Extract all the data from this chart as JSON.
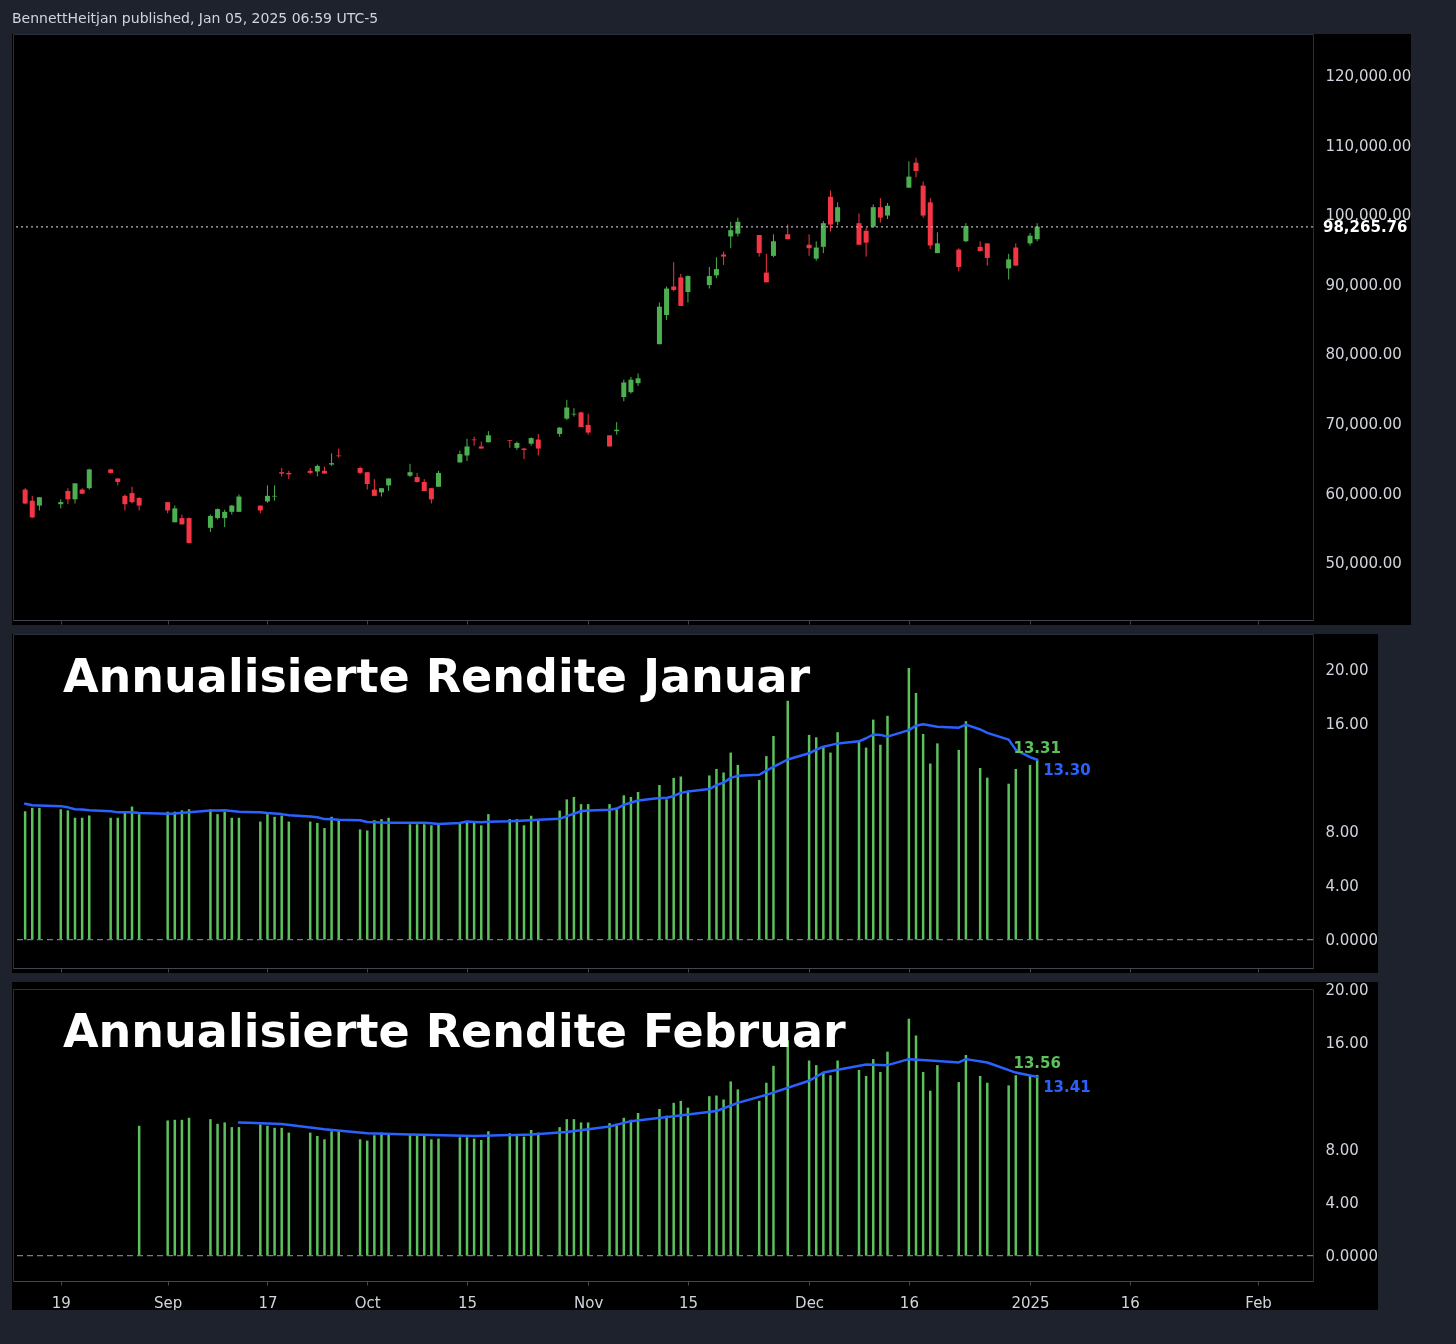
{
  "chart_data": [
    {
      "type": "candlestick",
      "annotations": [
        "BennettHeitjan published, Jan 05, 2025 06:59 UTC-5"
      ],
      "tick_labels": "y",
      "xlim": [
        "2024-08-13",
        "2025-02-10"
      ],
      "xticks": [
        {
          "value": "2024-08-19",
          "label": null
        },
        {
          "value": "2024-09-03",
          "label": null
        },
        {
          "value": "2024-09-17",
          "label": null
        },
        {
          "value": "2024-10-01",
          "label": null
        },
        {
          "value": "2024-10-15",
          "label": null
        },
        {
          "value": "2024-11-01",
          "label": null
        },
        {
          "value": "2024-11-15",
          "label": null
        },
        {
          "value": "2024-12-02",
          "label": null
        },
        {
          "value": "2024-12-16",
          "label": null
        },
        {
          "value": "2025-01-02",
          "label": null
        },
        {
          "value": "2025-01-16",
          "label": null
        },
        {
          "value": "2025-02-03",
          "label": null
        }
      ],
      "ylim": [
        41750,
        126000
      ],
      "yticks": [
        {
          "value": 50000,
          "label": "50,000.00"
        },
        {
          "value": 60000,
          "label": "60,000.00"
        },
        {
          "value": 70000,
          "label": "70,000.00"
        },
        {
          "value": 80000,
          "label": "80,000.00"
        },
        {
          "value": 90000,
          "label": "90,000.00"
        },
        {
          "value": 100000,
          "label": "100,000.00"
        },
        {
          "value": 110000,
          "label": "110,000.00"
        },
        {
          "value": 120000,
          "label": "120,000.00"
        }
      ],
      "ref_lines": [
        {
          "axis": "y",
          "value": 98265.76,
          "label": "98,265.76",
          "line_style": "dotted",
          "color": "#b2b5be"
        }
      ],
      "x": [
        "2024-08-14",
        "2024-08-15",
        "2024-08-16",
        "2024-08-19",
        "2024-08-20",
        "2024-08-21",
        "2024-08-22",
        "2024-08-23",
        "2024-08-26",
        "2024-08-27",
        "2024-08-28",
        "2024-08-29",
        "2024-08-30",
        "2024-09-03",
        "2024-09-04",
        "2024-09-05",
        "2024-09-06",
        "2024-09-09",
        "2024-09-10",
        "2024-09-11",
        "2024-09-12",
        "2024-09-13",
        "2024-09-16",
        "2024-09-17",
        "2024-09-18",
        "2024-09-19",
        "2024-09-20",
        "2024-09-23",
        "2024-09-24",
        "2024-09-25",
        "2024-09-26",
        "2024-09-27",
        "2024-09-30",
        "2024-10-01",
        "2024-10-02",
        "2024-10-03",
        "2024-10-04",
        "2024-10-07",
        "2024-10-08",
        "2024-10-09",
        "2024-10-10",
        "2024-10-11",
        "2024-10-14",
        "2024-10-15",
        "2024-10-16",
        "2024-10-17",
        "2024-10-18",
        "2024-10-21",
        "2024-10-22",
        "2024-10-23",
        "2024-10-24",
        "2024-10-25",
        "2024-10-28",
        "2024-10-29",
        "2024-10-30",
        "2024-10-31",
        "2024-11-01",
        "2024-11-04",
        "2024-11-05",
        "2024-11-06",
        "2024-11-07",
        "2024-11-08",
        "2024-11-11",
        "2024-11-12",
        "2024-11-13",
        "2024-11-14",
        "2024-11-15",
        "2024-11-18",
        "2024-11-19",
        "2024-11-20",
        "2024-11-21",
        "2024-11-22",
        "2024-11-25",
        "2024-11-26",
        "2024-11-27",
        "2024-11-29",
        "2024-12-02",
        "2024-12-03",
        "2024-12-04",
        "2024-12-05",
        "2024-12-06",
        "2024-12-09",
        "2024-12-10",
        "2024-12-11",
        "2024-12-12",
        "2024-12-13",
        "2024-12-16",
        "2024-12-17",
        "2024-12-18",
        "2024-12-19",
        "2024-12-20",
        "2024-12-23",
        "2024-12-24",
        "2024-12-26",
        "2024-12-27",
        "2024-12-30",
        "2024-12-31",
        "2025-01-02",
        "2025-01-03"
      ],
      "ohlc": [
        [
          60500,
          60700,
          58400,
          58500
        ],
        [
          58900,
          59600,
          56400,
          56500
        ],
        [
          58200,
          59400,
          57500,
          59400
        ],
        [
          58400,
          59100,
          57800,
          58700
        ],
        [
          60300,
          60700,
          58400,
          59100
        ],
        [
          59100,
          61400,
          58500,
          61400
        ],
        [
          60500,
          60700,
          59900,
          59900
        ],
        [
          60700,
          63500,
          60500,
          63400
        ],
        [
          63400,
          63500,
          62800,
          62900
        ],
        [
          62100,
          62100,
          61100,
          61600
        ],
        [
          59600,
          59800,
          57500,
          58400
        ],
        [
          60000,
          60900,
          58500,
          58700
        ],
        [
          59300,
          59400,
          57500,
          58200
        ],
        [
          58700,
          58700,
          57100,
          57500
        ],
        [
          55800,
          58200,
          55800,
          57800
        ],
        [
          56400,
          56900,
          55500,
          55500
        ],
        [
          56400,
          56500,
          52800,
          52800
        ],
        [
          55000,
          56900,
          54400,
          56700
        ],
        [
          56400,
          57800,
          56200,
          57700
        ],
        [
          56400,
          57600,
          55100,
          57300
        ],
        [
          57300,
          58300,
          56900,
          58200
        ],
        [
          57300,
          59800,
          57300,
          59500
        ],
        [
          58200,
          58200,
          57100,
          57500
        ],
        [
          58800,
          61100,
          58600,
          59600
        ],
        [
          59500,
          61100,
          58900,
          59600
        ],
        [
          63000,
          63600,
          62400,
          62800
        ],
        [
          62900,
          63200,
          62000,
          62700
        ],
        [
          63200,
          63600,
          62700,
          62900
        ],
        [
          63100,
          64100,
          62400,
          63900
        ],
        [
          63200,
          63800,
          62800,
          62800
        ],
        [
          64100,
          65700,
          63900,
          64300
        ],
        [
          65400,
          66400,
          65100,
          65300
        ],
        [
          63600,
          63800,
          62700,
          62900
        ],
        [
          63000,
          63000,
          60500,
          61300
        ],
        [
          60500,
          62000,
          59600,
          59600
        ],
        [
          60100,
          60700,
          59500,
          60700
        ],
        [
          61100,
          62100,
          60300,
          62100
        ],
        [
          62500,
          64200,
          62300,
          63000
        ],
        [
          62300,
          62900,
          61500,
          61600
        ],
        [
          61600,
          62000,
          60300,
          60300
        ],
        [
          60700,
          60700,
          58500,
          59100
        ],
        [
          60900,
          63200,
          60900,
          62900
        ],
        [
          64400,
          66100,
          64400,
          65600
        ],
        [
          65400,
          67800,
          64600,
          66700
        ],
        [
          67700,
          68100,
          66800,
          67600
        ],
        [
          66700,
          67400,
          66400,
          66400
        ],
        [
          67300,
          68900,
          67300,
          68300
        ],
        [
          67600,
          67600,
          66500,
          67500
        ],
        [
          66500,
          67400,
          66200,
          67200
        ],
        [
          66400,
          66500,
          64900,
          66200
        ],
        [
          67100,
          68000,
          66800,
          67900
        ],
        [
          67700,
          68500,
          65400,
          66400
        ],
        [
          68500,
          69500,
          68100,
          69400
        ],
        [
          70700,
          73400,
          70500,
          72300
        ],
        [
          71300,
          72200,
          71000,
          71400
        ],
        [
          71600,
          71700,
          69500,
          69500
        ],
        [
          69800,
          71400,
          68400,
          68700
        ],
        [
          68300,
          68300,
          66700,
          66700
        ],
        [
          68900,
          70200,
          68400,
          69100
        ],
        [
          73800,
          76300,
          73200,
          75900
        ],
        [
          74500,
          76700,
          74300,
          76300
        ],
        [
          75800,
          77200,
          75400,
          76500
        ],
        [
          81400,
          87400,
          81400,
          86800
        ],
        [
          85600,
          89700,
          84900,
          89400
        ],
        [
          89700,
          93200,
          89000,
          89200
        ],
        [
          91000,
          91500,
          86900,
          86900
        ],
        [
          88900,
          91300,
          87400,
          91200
        ],
        [
          89900,
          92500,
          89400,
          91200
        ],
        [
          91300,
          93900,
          90900,
          92200
        ],
        [
          94300,
          94700,
          92800,
          94000
        ],
        [
          96900,
          99000,
          95200,
          97800
        ],
        [
          97300,
          99600,
          96900,
          99000
        ],
        [
          97100,
          97100,
          94000,
          94500
        ],
        [
          91700,
          94400,
          90300,
          90300
        ],
        [
          94100,
          97200,
          93900,
          96200
        ],
        [
          97200,
          98600,
          96500,
          96500
        ],
        [
          95700,
          97200,
          94100,
          95200
        ],
        [
          93700,
          96200,
          93400,
          95300
        ],
        [
          95400,
          99100,
          94500,
          98800
        ],
        [
          102600,
          103500,
          97600,
          98600
        ],
        [
          99000,
          101800,
          98500,
          101100
        ],
        [
          98800,
          100200,
          95700,
          95700
        ],
        [
          97700,
          98100,
          94000,
          96000
        ],
        [
          98300,
          101500,
          98100,
          101100
        ],
        [
          101100,
          102400,
          98900,
          99600
        ],
        [
          99900,
          101700,
          99400,
          101300
        ],
        [
          103900,
          107700,
          103900,
          105500
        ],
        [
          107500,
          108200,
          105400,
          106300
        ],
        [
          104200,
          104800,
          99600,
          99900
        ],
        [
          101800,
          102400,
          95100,
          95600
        ],
        [
          94500,
          97500,
          94500,
          95900
        ],
        [
          95000,
          95200,
          91900,
          92500
        ],
        [
          96200,
          98800,
          96100,
          98400
        ],
        [
          95400,
          96200,
          94700,
          94800
        ],
        [
          95900,
          95900,
          92700,
          93800
        ],
        [
          92300,
          94400,
          90700,
          93600
        ],
        [
          95300,
          95900,
          92700,
          92700
        ],
        [
          95900,
          97400,
          95600,
          97000
        ],
        [
          96500,
          98800,
          96200,
          98300
        ]
      ]
    },
    {
      "type": "bar",
      "title": "Annualisierte Rendite Januar",
      "tick_labels": "y",
      "xlim": [
        "2024-08-13",
        "2025-02-10"
      ],
      "xticks": [
        {
          "value": "2024-08-19",
          "label": null
        },
        {
          "value": "2024-09-03",
          "label": null
        },
        {
          "value": "2024-09-17",
          "label": null
        },
        {
          "value": "2024-10-01",
          "label": null
        },
        {
          "value": "2024-10-15",
          "label": null
        },
        {
          "value": "2024-11-01",
          "label": null
        },
        {
          "value": "2024-11-15",
          "label": null
        },
        {
          "value": "2024-12-02",
          "label": null
        },
        {
          "value": "2024-12-16",
          "label": null
        },
        {
          "value": "2025-01-02",
          "label": null
        },
        {
          "value": "2025-01-16",
          "label": null
        },
        {
          "value": "2025-02-03",
          "label": null
        }
      ],
      "ylim": [
        -2.1,
        22.6
      ],
      "yticks": [
        {
          "value": 0,
          "label": "0.0000"
        },
        {
          "value": 4,
          "label": "4.00"
        },
        {
          "value": 8,
          "label": "8.00"
        },
        {
          "value": 16,
          "label": "16.00"
        },
        {
          "value": 20,
          "label": "20.00"
        }
      ],
      "ref_lines": [
        {
          "axis": "y",
          "value": 0,
          "line_style": "dashed",
          "color": "#787b86"
        }
      ],
      "x": [
        "2024-08-14",
        "2024-08-15",
        "2024-08-16",
        "2024-08-19",
        "2024-08-20",
        "2024-08-21",
        "2024-08-22",
        "2024-08-23",
        "2024-08-26",
        "2024-08-27",
        "2024-08-28",
        "2024-08-29",
        "2024-08-30",
        "2024-09-03",
        "2024-09-04",
        "2024-09-05",
        "2024-09-06",
        "2024-09-09",
        "2024-09-10",
        "2024-09-11",
        "2024-09-12",
        "2024-09-13",
        "2024-09-16",
        "2024-09-17",
        "2024-09-18",
        "2024-09-19",
        "2024-09-20",
        "2024-09-23",
        "2024-09-24",
        "2024-09-25",
        "2024-09-26",
        "2024-09-27",
        "2024-09-30",
        "2024-10-01",
        "2024-10-02",
        "2024-10-03",
        "2024-10-04",
        "2024-10-07",
        "2024-10-08",
        "2024-10-09",
        "2024-10-10",
        "2024-10-11",
        "2024-10-14",
        "2024-10-15",
        "2024-10-16",
        "2024-10-17",
        "2024-10-18",
        "2024-10-21",
        "2024-10-22",
        "2024-10-23",
        "2024-10-24",
        "2024-10-25",
        "2024-10-28",
        "2024-10-29",
        "2024-10-30",
        "2024-10-31",
        "2024-11-01",
        "2024-11-04",
        "2024-11-05",
        "2024-11-06",
        "2024-11-07",
        "2024-11-08",
        "2024-11-11",
        "2024-11-12",
        "2024-11-13",
        "2024-11-14",
        "2024-11-15",
        "2024-11-18",
        "2024-11-19",
        "2024-11-20",
        "2024-11-21",
        "2024-11-22",
        "2024-11-25",
        "2024-11-26",
        "2024-11-27",
        "2024-11-29",
        "2024-12-02",
        "2024-12-03",
        "2024-12-04",
        "2024-12-05",
        "2024-12-06",
        "2024-12-09",
        "2024-12-10",
        "2024-12-11",
        "2024-12-12",
        "2024-12-13",
        "2024-12-16",
        "2024-12-17",
        "2024-12-18",
        "2024-12-19",
        "2024-12-20",
        "2024-12-23",
        "2024-12-24",
        "2024-12-26",
        "2024-12-27",
        "2024-12-30",
        "2024-12-31",
        "2025-01-02",
        "2025-01-03"
      ],
      "series": [
        {
          "color": "#5cc15c",
          "values": [
            9.49,
            9.74,
            9.74,
            9.64,
            9.56,
            9.01,
            9.01,
            9.18,
            9.01,
            9.01,
            9.36,
            9.84,
            9.28,
            9.46,
            9.46,
            9.56,
            9.64,
            9.64,
            9.28,
            9.46,
            9.01,
            9.01,
            8.73,
            9.28,
            9.08,
            9.18,
            8.73,
            8.73,
            8.63,
            8.25,
            9.08,
            8.83,
            8.15,
            8.07,
            8.83,
            8.91,
            9.01,
            8.53,
            8.53,
            8.53,
            8.45,
            8.53,
            8.6,
            8.73,
            8.63,
            8.45,
            9.28,
            8.91,
            8.91,
            8.45,
            9.16,
            8.78,
            9.54,
            10.37,
            10.55,
            10.02,
            10.02,
            10.02,
            9.66,
            10.67,
            10.55,
            10.92,
            11.43,
            10.37,
            11.96,
            12.06,
            10.98,
            12.14,
            12.62,
            12.36,
            13.83,
            12.92,
            11.81,
            13.57,
            15.06,
            17.66,
            15.14,
            14.96,
            14.31,
            13.83,
            15.34,
            14.71,
            14.2,
            16.27,
            14.41,
            16.55,
            20.08,
            18.24,
            15.21,
            13.02,
            14.51,
            14.03,
            16.15,
            12.69,
            11.98,
            11.53,
            12.62,
            12.92,
            13.31
          ],
          "value_labels": [
            null,
            null,
            null,
            null,
            null,
            null,
            null,
            null,
            null,
            null,
            null,
            null,
            null,
            null,
            null,
            null,
            null,
            null,
            null,
            null,
            null,
            null,
            null,
            null,
            null,
            null,
            null,
            null,
            null,
            null,
            null,
            null,
            null,
            null,
            null,
            null,
            null,
            null,
            null,
            null,
            null,
            null,
            null,
            null,
            null,
            null,
            null,
            null,
            null,
            null,
            null,
            null,
            null,
            null,
            null,
            null,
            null,
            null,
            null,
            null,
            null,
            null,
            null,
            null,
            null,
            null,
            null,
            null,
            null,
            null,
            null,
            null,
            null,
            null,
            null,
            null,
            null,
            null,
            null,
            null,
            null,
            null,
            null,
            null,
            null,
            null,
            null,
            null,
            null,
            null,
            null,
            null,
            null,
            null,
            null,
            null,
            null,
            null,
            "13.31"
          ]
        },
        {
          "type": "line",
          "color": "#2962ff",
          "values": [
            10.05,
            9.94,
            9.92,
            9.87,
            9.78,
            9.64,
            9.62,
            9.56,
            9.5,
            9.41,
            9.41,
            9.41,
            9.36,
            9.31,
            9.33,
            9.38,
            9.41,
            9.54,
            9.55,
            9.56,
            9.51,
            9.46,
            9.41,
            9.36,
            9.33,
            9.28,
            9.2,
            9.11,
            9.05,
            8.91,
            8.9,
            8.86,
            8.83,
            8.7,
            8.68,
            8.66,
            8.65,
            8.65,
            8.65,
            8.65,
            8.6,
            8.55,
            8.62,
            8.73,
            8.7,
            8.68,
            8.72,
            8.75,
            8.78,
            8.8,
            8.83,
            8.86,
            8.93,
            9.13,
            9.31,
            9.49,
            9.54,
            9.61,
            9.69,
            9.97,
            10.12,
            10.29,
            10.47,
            10.47,
            10.62,
            10.85,
            10.95,
            11.13,
            11.43,
            11.61,
            11.96,
            12.11,
            12.19,
            12.49,
            12.77,
            13.32,
            13.78,
            14.05,
            14.26,
            14.38,
            14.51,
            14.66,
            14.89,
            15.16,
            15.14,
            15.01,
            15.49,
            15.82,
            15.92,
            15.84,
            15.74,
            15.67,
            15.9,
            15.54,
            15.29,
            14.79,
            14.03,
            13.5,
            13.3
          ],
          "value_labels": [
            null,
            null,
            null,
            null,
            null,
            null,
            null,
            null,
            null,
            null,
            null,
            null,
            null,
            null,
            null,
            null,
            null,
            null,
            null,
            null,
            null,
            null,
            null,
            null,
            null,
            null,
            null,
            null,
            null,
            null,
            null,
            null,
            null,
            null,
            null,
            null,
            null,
            null,
            null,
            null,
            null,
            null,
            null,
            null,
            null,
            null,
            null,
            null,
            null,
            null,
            null,
            null,
            null,
            null,
            null,
            null,
            null,
            null,
            null,
            null,
            null,
            null,
            null,
            null,
            null,
            null,
            null,
            null,
            null,
            null,
            null,
            null,
            null,
            null,
            null,
            null,
            null,
            null,
            null,
            null,
            null,
            null,
            null,
            null,
            null,
            null,
            null,
            null,
            null,
            null,
            null,
            null,
            null,
            null,
            null,
            null,
            null,
            null,
            "13.30"
          ]
        }
      ]
    },
    {
      "type": "bar",
      "title": "Annualisierte Rendite Februar",
      "xlim": [
        "2024-08-13",
        "2025-02-10"
      ],
      "ylim": [
        -1.9,
        20
      ],
      "xticks": [
        {
          "value": "2024-08-19",
          "label": "19"
        },
        {
          "value": "2024-09-03",
          "label": "Sep"
        },
        {
          "value": "2024-09-17",
          "label": "17"
        },
        {
          "value": "2024-10-01",
          "label": "Oct"
        },
        {
          "value": "2024-10-15",
          "label": "15"
        },
        {
          "value": "2024-11-01",
          "label": "Nov"
        },
        {
          "value": "2024-11-15",
          "label": "15"
        },
        {
          "value": "2024-12-02",
          "label": "Dec"
        },
        {
          "value": "2024-12-16",
          "label": "16"
        },
        {
          "value": "2025-01-02",
          "label": "2025"
        },
        {
          "value": "2025-01-16",
          "label": "16"
        },
        {
          "value": "2025-02-03",
          "label": "Feb"
        }
      ],
      "yticks": [
        {
          "value": 0,
          "label": "0.0000"
        },
        {
          "value": 4,
          "label": "4.00"
        },
        {
          "value": 8,
          "label": "8.00"
        },
        {
          "value": 16,
          "label": "16.00"
        },
        {
          "value": 20,
          "label": "20.00"
        }
      ],
      "ref_lines": [
        {
          "axis": "y",
          "value": 0,
          "line_style": "dashed",
          "color": "#787b86"
        }
      ],
      "series": [
        {
          "color": "#5cc15c",
          "x": [
            "2024-08-30",
            "2024-09-03",
            "2024-09-04",
            "2024-09-05",
            "2024-09-06",
            "2024-09-09",
            "2024-09-10",
            "2024-09-11",
            "2024-09-12",
            "2024-09-13",
            "2024-09-16",
            "2024-09-17",
            "2024-09-18",
            "2024-09-19",
            "2024-09-20",
            "2024-09-23",
            "2024-09-24",
            "2024-09-25",
            "2024-09-26",
            "2024-09-27",
            "2024-09-30",
            "2024-10-01",
            "2024-10-02",
            "2024-10-03",
            "2024-10-04",
            "2024-10-07",
            "2024-10-08",
            "2024-10-09",
            "2024-10-10",
            "2024-10-11",
            "2024-10-14",
            "2024-10-15",
            "2024-10-16",
            "2024-10-17",
            "2024-10-18",
            "2024-10-21",
            "2024-10-22",
            "2024-10-23",
            "2024-10-24",
            "2024-10-25",
            "2024-10-28",
            "2024-10-29",
            "2024-10-30",
            "2024-10-31",
            "2024-11-01",
            "2024-11-04",
            "2024-11-05",
            "2024-11-06",
            "2024-11-07",
            "2024-11-08",
            "2024-11-11",
            "2024-11-12",
            "2024-11-13",
            "2024-11-14",
            "2024-11-15",
            "2024-11-18",
            "2024-11-19",
            "2024-11-20",
            "2024-11-21",
            "2024-11-22",
            "2024-11-25",
            "2024-11-26",
            "2024-11-27",
            "2024-11-29",
            "2024-12-02",
            "2024-12-03",
            "2024-12-04",
            "2024-12-05",
            "2024-12-06",
            "2024-12-09",
            "2024-12-10",
            "2024-12-11",
            "2024-12-12",
            "2024-12-13",
            "2024-12-16",
            "2024-12-17",
            "2024-12-18",
            "2024-12-19",
            "2024-12-20",
            "2024-12-23",
            "2024-12-24",
            "2024-12-26",
            "2024-12-27",
            "2024-12-30",
            "2024-12-31",
            "2025-01-02",
            "2025-01-03"
          ],
          "values": [
            9.74,
            10.14,
            10.19,
            10.19,
            10.34,
            10.24,
            9.89,
            9.99,
            9.64,
            9.64,
            9.84,
            9.74,
            9.59,
            9.59,
            9.23,
            9.23,
            8.98,
            8.73,
            9.33,
            9.33,
            8.73,
            8.63,
            9.03,
            9.23,
            9.18,
            9.13,
            9.03,
            9.13,
            8.73,
            8.78,
            8.88,
            8.88,
            8.78,
            8.68,
            9.33,
            9.18,
            9.08,
            8.93,
            9.43,
            9.23,
            9.64,
            10.24,
            10.24,
            9.99,
            9.99,
            9.94,
            9.89,
            10.34,
            10.19,
            10.7,
            11.0,
            10.5,
            11.46,
            11.61,
            11.1,
            11.96,
            12.01,
            11.71,
            13.07,
            12.47,
            11.61,
            12.97,
            14.24,
            16.16,
            14.64,
            14.29,
            13.78,
            13.53,
            14.64,
            13.93,
            13.48,
            14.74,
            13.78,
            15.3,
            17.77,
            16.51,
            13.78,
            12.37,
            14.29,
            13.02,
            15.05,
            13.48,
            12.97,
            12.77,
            13.53,
            13.53,
            13.56
          ],
          "value_labels": [
            null,
            null,
            null,
            null,
            null,
            null,
            null,
            null,
            null,
            null,
            null,
            null,
            null,
            null,
            null,
            null,
            null,
            null,
            null,
            null,
            null,
            null,
            null,
            null,
            null,
            null,
            null,
            null,
            null,
            null,
            null,
            null,
            null,
            null,
            null,
            null,
            null,
            null,
            null,
            null,
            null,
            null,
            null,
            null,
            null,
            null,
            null,
            null,
            null,
            null,
            null,
            null,
            null,
            null,
            null,
            null,
            null,
            null,
            null,
            null,
            null,
            null,
            null,
            null,
            null,
            null,
            null,
            null,
            null,
            null,
            null,
            null,
            null,
            null,
            null,
            null,
            null,
            null,
            null,
            null,
            null,
            null,
            null,
            null,
            null,
            null,
            "13.56"
          ]
        },
        {
          "type": "line",
          "color": "#2962ff",
          "x": [
            "2024-09-13",
            "2024-09-19",
            "2024-09-25",
            "2024-10-01",
            "2024-10-07",
            "2024-10-16",
            "2024-10-24",
            "2024-10-29",
            "2024-11-04",
            "2024-11-07",
            "2024-11-13",
            "2024-11-19",
            "2024-11-22",
            "2024-11-26",
            "2024-12-02",
            "2024-12-04",
            "2024-12-10",
            "2024-12-13",
            "2024-12-16",
            "2024-12-19",
            "2024-12-23",
            "2024-12-24",
            "2024-12-27",
            "2024-12-31",
            "2025-01-03"
          ],
          "values": [
            9.99,
            9.87,
            9.48,
            9.18,
            9.08,
            8.98,
            9.08,
            9.28,
            9.69,
            10.09,
            10.45,
            10.85,
            11.46,
            12.06,
            13.12,
            13.73,
            14.34,
            14.29,
            14.74,
            14.64,
            14.49,
            14.74,
            14.49,
            13.73,
            13.41
          ],
          "value_labels": [
            null,
            null,
            null,
            null,
            null,
            null,
            null,
            null,
            null,
            null,
            null,
            null,
            null,
            null,
            null,
            null,
            null,
            null,
            null,
            null,
            null,
            null,
            null,
            null,
            "13.41"
          ]
        }
      ]
    }
  ]
}
